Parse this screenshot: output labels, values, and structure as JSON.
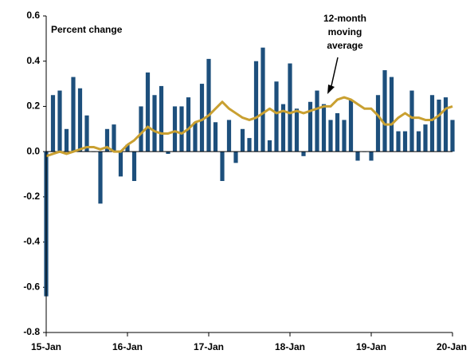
{
  "chart_data": {
    "type": "bar_line",
    "y_label": "Percent change",
    "annotation": [
      "12-month",
      "moving",
      "average"
    ],
    "categories": [
      "15-Jan",
      null,
      null,
      null,
      null,
      null,
      null,
      null,
      null,
      null,
      null,
      null,
      "16-Jan",
      null,
      null,
      null,
      null,
      null,
      null,
      null,
      null,
      null,
      null,
      null,
      "17-Jan",
      null,
      null,
      null,
      null,
      null,
      null,
      null,
      null,
      null,
      null,
      null,
      "18-Jan",
      null,
      null,
      null,
      null,
      null,
      null,
      null,
      null,
      null,
      null,
      null,
      "19-Jan",
      null,
      null,
      null,
      null,
      null,
      null,
      null,
      null,
      null,
      null,
      null,
      "20-Jan"
    ],
    "series": [
      {
        "type": "bar",
        "color": "#1d4f7c",
        "values": [
          -0.64,
          0.25,
          0.27,
          0.1,
          0.33,
          0.28,
          0.16,
          0.0,
          -0.23,
          0.1,
          0.12,
          -0.11,
          0.03,
          -0.13,
          0.2,
          0.35,
          0.25,
          0.29,
          -0.01,
          0.2,
          0.2,
          0.24,
          0.13,
          0.3,
          0.41,
          0.13,
          -0.13,
          0.14,
          -0.05,
          0.1,
          0.06,
          0.4,
          0.46,
          0.05,
          0.31,
          0.21,
          0.39,
          0.19,
          -0.02,
          0.22,
          0.27,
          0.21,
          0.14,
          0.17,
          0.14,
          0.23,
          -0.04,
          0.0,
          -0.04,
          0.25,
          0.36,
          0.33,
          0.09,
          0.09,
          0.27,
          0.09,
          0.12,
          0.25,
          0.23,
          0.24,
          0.14
        ]
      },
      {
        "type": "line",
        "color": "#c9a031",
        "values": [
          -0.02,
          -0.01,
          0.0,
          -0.01,
          0.0,
          0.01,
          0.02,
          0.02,
          0.01,
          0.02,
          0.0,
          0.0,
          0.03,
          0.05,
          0.08,
          0.11,
          0.09,
          0.08,
          0.08,
          0.09,
          0.08,
          0.1,
          0.13,
          0.14,
          0.16,
          0.19,
          0.22,
          0.19,
          0.17,
          0.15,
          0.14,
          0.15,
          0.17,
          0.19,
          0.17,
          0.18,
          0.17,
          0.18,
          0.17,
          0.18,
          0.19,
          0.2,
          0.2,
          0.23,
          0.24,
          0.23,
          0.21,
          0.19,
          0.19,
          0.16,
          0.12,
          0.12,
          0.15,
          0.17,
          0.15,
          0.15,
          0.14,
          0.14,
          0.16,
          0.19,
          0.2
        ]
      }
    ],
    "ylim": [
      -0.8,
      0.6
    ],
    "yticks": [
      -0.8,
      -0.6,
      -0.4,
      -0.2,
      {
        "value": 0,
        "label": "0.0"
      },
      0.2,
      0.4,
      0.6
    ],
    "grid": false
  }
}
